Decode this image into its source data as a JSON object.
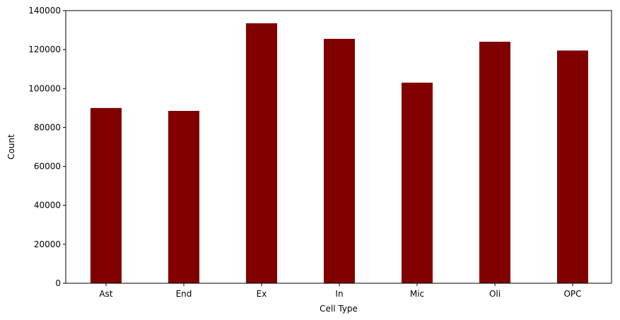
{
  "chart_data": {
    "type": "bar",
    "title": "",
    "xlabel": "Cell Type",
    "ylabel": "Count",
    "categories": [
      "Ast",
      "End",
      "Ex",
      "In",
      "Mic",
      "Oli",
      "OPC"
    ],
    "values": [
      90000,
      88500,
      133500,
      125500,
      103000,
      124000,
      119500
    ],
    "ylim": [
      0,
      140000
    ],
    "yticks": [
      0,
      20000,
      40000,
      60000,
      80000,
      100000,
      120000,
      140000
    ],
    "grid": false,
    "legend": "none",
    "bar_color": "#800000"
  }
}
